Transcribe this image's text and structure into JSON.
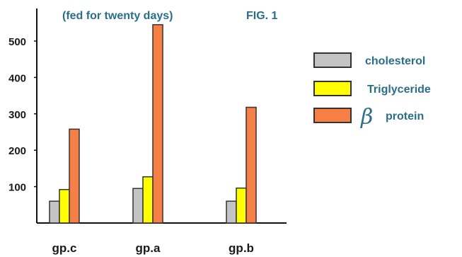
{
  "chart_data": {
    "type": "bar",
    "title": "(fed for twenty days)",
    "figure_label": "FIG. 1",
    "xlabel": "",
    "ylabel": "",
    "categories": [
      "gp.c",
      "gp.a",
      "gp.b"
    ],
    "ylim": [
      0,
      590
    ],
    "yticks": [
      100,
      200,
      300,
      400,
      500
    ],
    "ytick_labels": [
      "100",
      "200",
      "300",
      "400",
      "500"
    ],
    "grid": false,
    "legend_position": "right",
    "series": [
      {
        "name": "cholesterol",
        "color": "#c4c4c4",
        "values": [
          60,
          95,
          60
        ]
      },
      {
        "name": "Triglyceride",
        "color": "#ffff00",
        "values": [
          92,
          127,
          96
        ]
      },
      {
        "name": "protein",
        "symbol": "β",
        "color": "#f57f45",
        "values": [
          258,
          545,
          318
        ]
      }
    ]
  }
}
